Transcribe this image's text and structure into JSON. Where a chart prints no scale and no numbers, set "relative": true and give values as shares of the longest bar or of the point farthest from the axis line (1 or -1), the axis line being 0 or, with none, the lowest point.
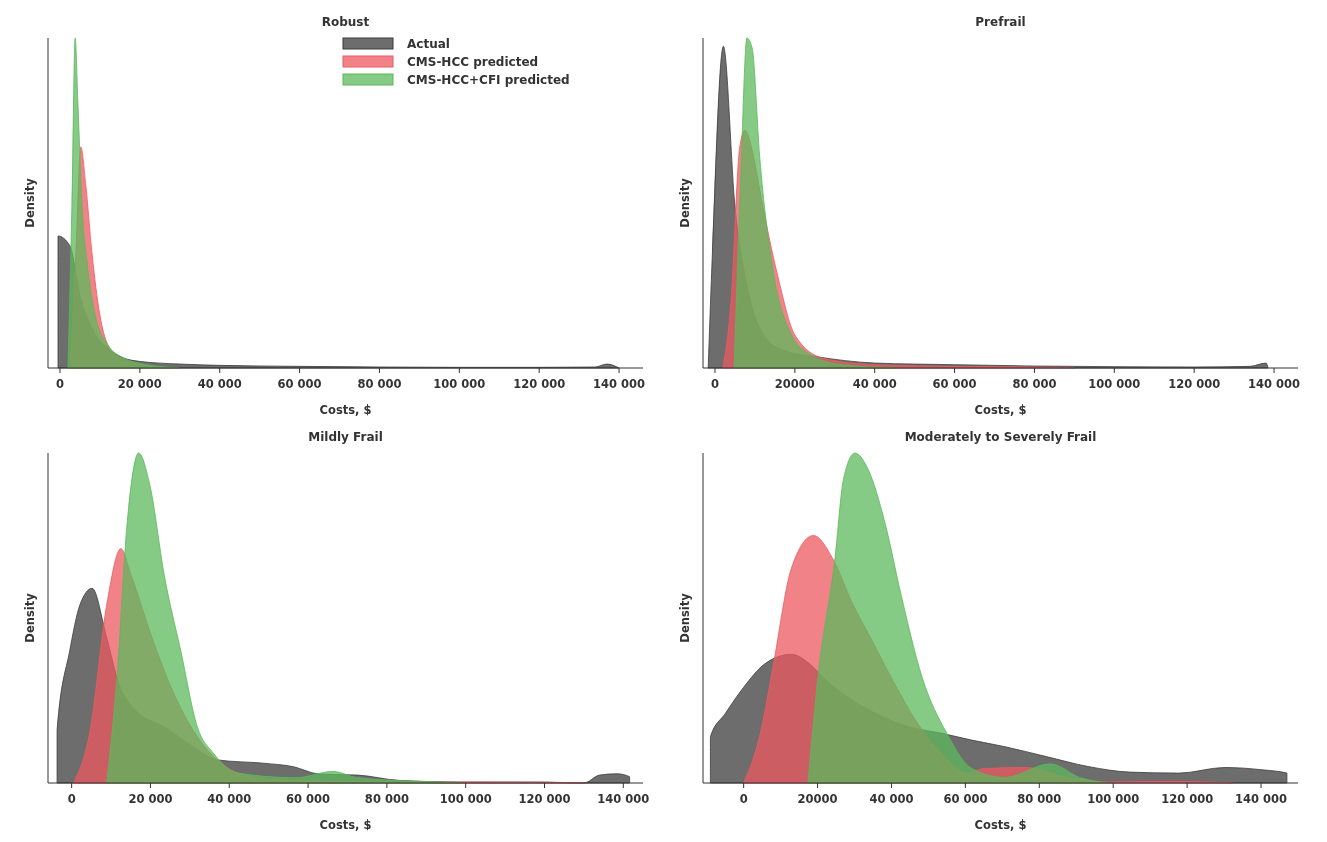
{
  "chart_data": [
    {
      "type": "area",
      "title": "Robust",
      "xlabel": "Costs, $",
      "ylabel": "Density",
      "relative": true,
      "legend": "top right",
      "xlim": [
        -3000,
        146000
      ],
      "xticks": [
        {
          "value": 0,
          "label": "0"
        },
        {
          "value": 20000,
          "label": "20 000"
        },
        {
          "value": 40000,
          "label": "40 000"
        },
        {
          "value": 60000,
          "label": "60 000"
        },
        {
          "value": 80000,
          "label": "80 000"
        },
        {
          "value": 100000,
          "label": "100 000"
        },
        {
          "value": 120000,
          "label": "120 000"
        },
        {
          "value": 140000,
          "label": "140 000"
        }
      ],
      "series": [
        {
          "name": "Actual",
          "color": "#3c3c3c",
          "x": [
            -500,
            -500,
            2500,
            5000,
            8000,
            12000,
            16000,
            20000,
            30000,
            40000,
            60000,
            80000,
            100000,
            120000,
            134000,
            137000,
            140000
          ],
          "values": [
            0,
            0.4,
            0.37,
            0.22,
            0.12,
            0.06,
            0.03,
            0.02,
            0.012,
            0.008,
            0.005,
            0.003,
            0.002,
            0.002,
            0.003,
            0.012,
            0
          ]
        },
        {
          "name": "CMS-HCC predicted",
          "color": "#ec5a60",
          "x": [
            2500,
            4000,
            5200,
            6500,
            8000,
            10000,
            12000,
            15000,
            20000,
            28000
          ],
          "values": [
            0,
            0.35,
            0.67,
            0.55,
            0.35,
            0.16,
            0.07,
            0.03,
            0.01,
            0
          ]
        },
        {
          "name": "CMS-HCC+CFI predicted",
          "color": "#5cb85c",
          "x": [
            2000,
            3000,
            3800,
            4500,
            5500,
            7000,
            9000,
            12000,
            16000,
            22000,
            30000
          ],
          "values": [
            0,
            0.5,
            1,
            0.8,
            0.5,
            0.3,
            0.15,
            0.07,
            0.03,
            0.01,
            0
          ]
        }
      ]
    },
    {
      "type": "area",
      "title": "Prefrail",
      "xlabel": "Costs, $",
      "ylabel": "Density",
      "relative": true,
      "xlim": [
        -3000,
        146000
      ],
      "xticks": [
        {
          "value": 0,
          "label": "0"
        },
        {
          "value": 20000,
          "label": "20000"
        },
        {
          "value": 40000,
          "label": "40 000"
        },
        {
          "value": 60000,
          "label": "60 000"
        },
        {
          "value": 80000,
          "label": "80 000"
        },
        {
          "value": 100000,
          "label": "100 000"
        },
        {
          "value": 120000,
          "label": "120 000"
        },
        {
          "value": 140000,
          "label": "140 000"
        }
      ],
      "series": [
        {
          "color": "#3c3c3c",
          "x": [
            -1700,
            -800,
            2100,
            5000,
            8000,
            12800,
            18000,
            25000,
            40000,
            60000,
            80000,
            100000,
            120000,
            134000,
            138000,
            138500
          ],
          "values": [
            0,
            0.3,
            0.975,
            0.49,
            0.25,
            0.09,
            0.05,
            0.035,
            0.015,
            0.01,
            0.006,
            0.004,
            0.003,
            0.005,
            0.015,
            0
          ]
        },
        {
          "color": "#ec5a60",
          "x": [
            2000,
            4000,
            6200,
            7500,
            9500,
            11500,
            15700,
            20000,
            27000,
            40000,
            60000,
            80000,
            90000
          ],
          "values": [
            0,
            0.2,
            0.67,
            0.72,
            0.65,
            0.52,
            0.28,
            0.1,
            0.03,
            0.01,
            0.005,
            0.003,
            0
          ]
        },
        {
          "color": "#5cb85c",
          "x": [
            4800,
            6500,
            8000,
            9300,
            11200,
            14500,
            18800,
            24000,
            32000,
            45000
          ],
          "values": [
            0,
            0.6,
            1,
            0.97,
            0.64,
            0.3,
            0.11,
            0.04,
            0.01,
            0
          ]
        }
      ]
    },
    {
      "type": "area",
      "title": "Mildly Frail",
      "xlabel": "Costs, $",
      "ylabel": "Density",
      "relative": true,
      "xlim": [
        -6000,
        145000
      ],
      "xticks": [
        {
          "value": 0,
          "label": "0"
        },
        {
          "value": 20000,
          "label": "20 000"
        },
        {
          "value": 40000,
          "label": "40 000"
        },
        {
          "value": 60000,
          "label": "60 000"
        },
        {
          "value": 80000,
          "label": "80 000"
        },
        {
          "value": 100000,
          "label": "100 000"
        },
        {
          "value": 120000,
          "label": "120 000"
        },
        {
          "value": 140000,
          "label": "140 000"
        }
      ],
      "series": [
        {
          "color": "#3c3c3c",
          "x": [
            -3700,
            -3700,
            -500,
            2100,
            5200,
            8900,
            12000,
            16200,
            23500,
            30800,
            37000,
            48600,
            56000,
            63000,
            72600,
            83000,
            98700,
            119600,
            130000,
            134000,
            138400,
            141600,
            141600
          ],
          "values": [
            0,
            0.16,
            0.4,
            0.54,
            0.59,
            0.44,
            0.3,
            0.22,
            0.17,
            0.11,
            0.07,
            0.06,
            0.05,
            0.027,
            0.024,
            0.008,
            0.003,
            0.003,
            0,
            0.024,
            0.028,
            0.019,
            0
          ]
        },
        {
          "color": "#ec5a60",
          "x": [
            500,
            4700,
            8900,
            12500,
            15100,
            20400,
            25600,
            30800,
            36000,
            42300,
            51700,
            67400,
            88300,
            119600,
            130000
          ],
          "values": [
            0,
            0.16,
            0.54,
            0.71,
            0.63,
            0.44,
            0.28,
            0.16,
            0.08,
            0.03,
            0.01,
            0.005,
            0.003,
            0.002,
            0
          ]
        },
        {
          "color": "#5cb85c",
          "x": [
            8900,
            11500,
            14100,
            17000,
            19900,
            23500,
            27700,
            31900,
            36000,
            42300,
            56900,
            66300,
            72600,
            88300,
            98700
          ],
          "values": [
            0,
            0.32,
            0.79,
            1,
            0.9,
            0.63,
            0.4,
            0.17,
            0.09,
            0.03,
            0.016,
            0.035,
            0.016,
            0.005,
            0
          ]
        }
      ]
    },
    {
      "type": "area",
      "title": "Moderately to Severely Frail",
      "xlabel": "Costs, $",
      "ylabel": "Density",
      "relative": true,
      "xlim": [
        -11000,
        150000
      ],
      "xticks": [
        {
          "value": 0,
          "label": "0"
        },
        {
          "value": 20000,
          "label": "20000"
        },
        {
          "value": 40000,
          "label": "40 000"
        },
        {
          "value": 60000,
          "label": "60 000"
        },
        {
          "value": 80000,
          "label": "80 000"
        },
        {
          "value": 100000,
          "label": "100 000"
        },
        {
          "value": 120000,
          "label": "120 000"
        },
        {
          "value": 140000,
          "label": "140 000"
        }
      ],
      "series": [
        {
          "color": "#3c3c3c",
          "x": [
            -9000,
            -9000,
            -5000,
            0,
            5600,
            12900,
            18000,
            22400,
            28100,
            35900,
            44900,
            53900,
            61700,
            70700,
            81900,
            93200,
            104400,
            117800,
            130200,
            140300,
            147000,
            147000
          ],
          "values": [
            0,
            0.14,
            0.21,
            0.29,
            0.36,
            0.39,
            0.36,
            0.31,
            0.26,
            0.21,
            0.17,
            0.15,
            0.13,
            0.11,
            0.08,
            0.05,
            0.033,
            0.03,
            0.047,
            0.04,
            0.03,
            0
          ]
        },
        {
          "color": "#ec5a60",
          "x": [
            0,
            4500,
            7900,
            12900,
            18900,
            24100,
            29200,
            34800,
            40400,
            47100,
            53900,
            60600,
            65100,
            76300,
            87500,
            98800,
            115600,
            132400
          ],
          "values": [
            0,
            0.15,
            0.35,
            0.65,
            0.75,
            0.68,
            0.55,
            0.43,
            0.31,
            0.18,
            0.085,
            0.03,
            0.044,
            0.047,
            0.017,
            0.003,
            0.005,
            0
          ]
        },
        {
          "color": "#5cb85c",
          "x": [
            17400,
            20200,
            24700,
            27000,
            30100,
            33700,
            38200,
            42600,
            48300,
            55000,
            61700,
            70700,
            83000,
            90900,
            98800
          ],
          "values": [
            0,
            0.33,
            0.68,
            0.92,
            1,
            0.95,
            0.79,
            0.57,
            0.32,
            0.15,
            0.044,
            0.017,
            0.058,
            0.017,
            0
          ]
        }
      ]
    }
  ]
}
